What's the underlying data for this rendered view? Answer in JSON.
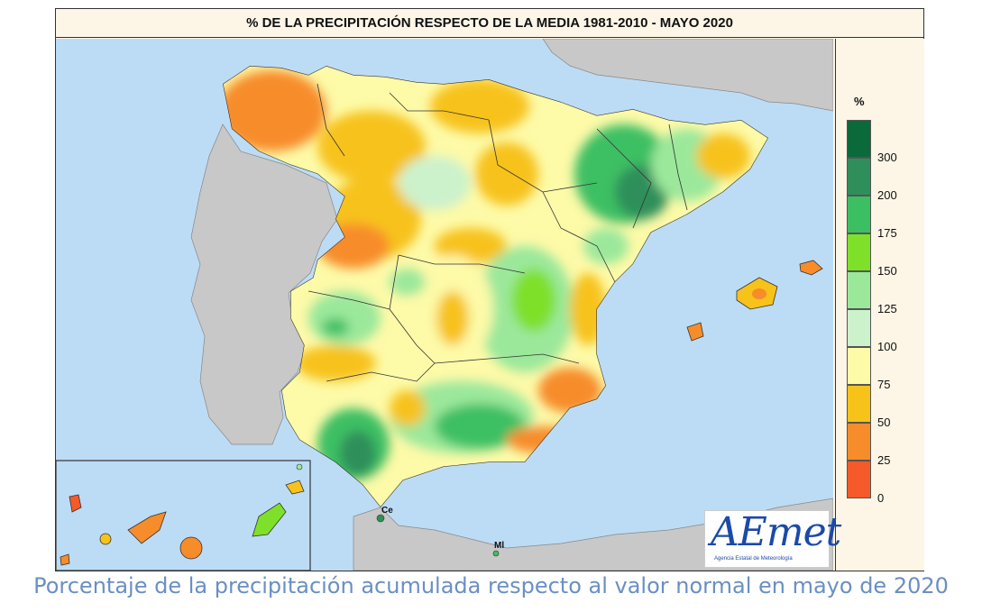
{
  "map": {
    "title": "% DE LA PRECIPITACIÓN RESPECTO DE LA MEDIA 1981-2010 - MAYO 2020",
    "labels": {
      "ceuta": "Ce",
      "melilla": "Ml"
    },
    "colors": {
      "sea": "#bcdcf6",
      "neighbor_land": "#c8c8c8",
      "frame_bg": "#fdf6e7"
    }
  },
  "legend": {
    "unit": "%",
    "ticks": [
      "300",
      "200",
      "175",
      "150",
      "125",
      "100",
      "75",
      "50",
      "25",
      "0"
    ],
    "colors": [
      "#0a6a3a",
      "#2e8f5a",
      "#3cbf63",
      "#7fe02a",
      "#9be89b",
      "#ccf2cc",
      "#fdfaa8",
      "#f7c21a",
      "#f78c2a",
      "#f55a2a"
    ]
  },
  "logo": {
    "text": "AEmet",
    "subtitle": "Agencia Estatal de Meteorología"
  },
  "caption": "Porcentaje de la precipitación acumulada respecto al valor normal en mayo de 2020"
}
